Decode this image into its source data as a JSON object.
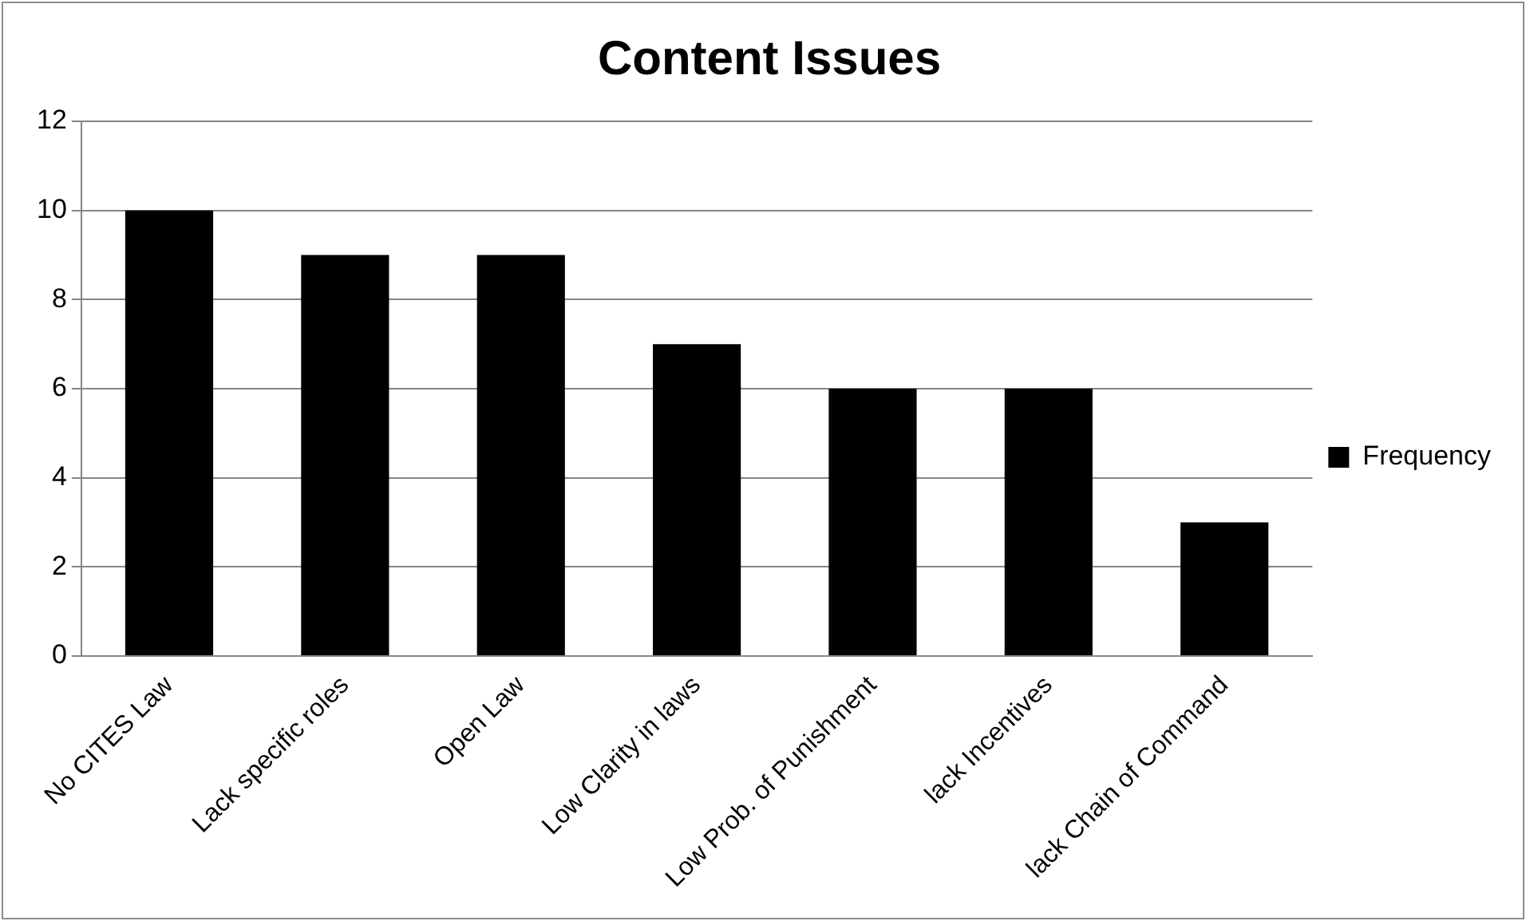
{
  "chart_data": {
    "type": "bar",
    "title": "Content Issues",
    "categories": [
      "No CITES Law",
      "Lack specific roles",
      "Open Law",
      "Low Clarity in laws",
      "Low Prob. of Punishment",
      "lack Incentives",
      "lack Chain of Command"
    ],
    "series": [
      {
        "name": "Frequency",
        "color": "#000000",
        "values": [
          10,
          9,
          9,
          7,
          6,
          6,
          3
        ]
      }
    ],
    "ylim": [
      0,
      12
    ],
    "yticks": [
      0,
      2,
      4,
      6,
      8,
      10,
      12
    ],
    "grid": "y",
    "legend": "right"
  }
}
